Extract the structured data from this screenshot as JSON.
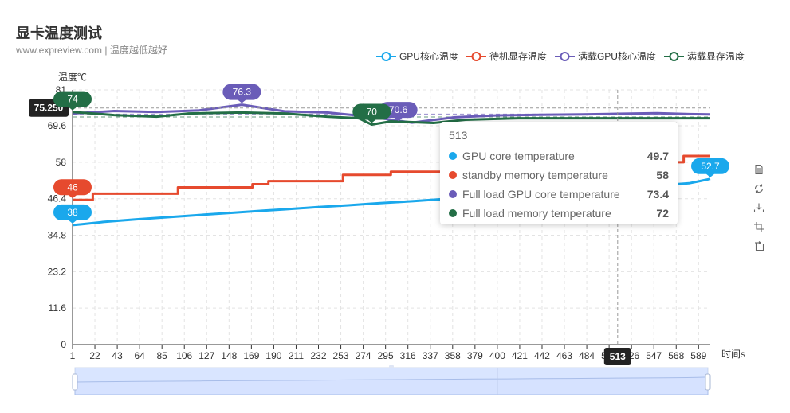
{
  "title": "显卡温度测试",
  "subtitle": "www.expreview.com | 温度越低越好",
  "colors": {
    "gpu": "#1aa8ec",
    "standby": "#e64a2e",
    "loadgpu": "#6a5cb8",
    "loadmem": "#236e46"
  },
  "legend": [
    {
      "name": "GPU核心温度",
      "color": "#1aa8ec"
    },
    {
      "name": "待机显存温度",
      "color": "#e64a2e"
    },
    {
      "name": "满载GPU核心温度",
      "color": "#6a5cb8"
    },
    {
      "name": "满载显存温度",
      "color": "#236e46"
    }
  ],
  "axis_pointer": {
    "y_label": "75.250",
    "x_label": "513"
  },
  "tooltip": {
    "header": "513",
    "rows": [
      {
        "name": "GPU core temperature",
        "value": "49.7",
        "color": "#1aa8ec"
      },
      {
        "name": "standby memory temperature",
        "value": "58",
        "color": "#e64a2e"
      },
      {
        "name": "Full load GPU core temperature",
        "value": "73.4",
        "color": "#6a5cb8"
      },
      {
        "name": "Full load memory temperature",
        "value": "72",
        "color": "#236e46"
      }
    ]
  },
  "toolbox": [
    "data-view-icon",
    "restore-icon",
    "save-image-icon",
    "zoom-icon",
    "zoom-reset-icon"
  ],
  "chart_data": {
    "type": "line",
    "ylabel": "温度℃",
    "xlabel": "时间s",
    "ylim": [
      0,
      81
    ],
    "xlim": [
      1,
      600
    ],
    "y_ticks": [
      0,
      11.6,
      23.2,
      34.8,
      46.4,
      58,
      69.6,
      81
    ],
    "y_tick_labels": [
      "0",
      "11.6",
      "23.2",
      "34.8",
      "46.4",
      "58",
      "69.6",
      "81"
    ],
    "x_ticks": [
      1,
      22,
      43,
      64,
      85,
      106,
      127,
      148,
      169,
      190,
      211,
      232,
      253,
      274,
      295,
      316,
      337,
      358,
      379,
      400,
      421,
      442,
      463,
      484,
      505,
      526,
      547,
      568,
      589
    ],
    "x_tick_labels": [
      "1",
      "22",
      "43",
      "64",
      "85",
      "106",
      "127",
      "148",
      "169",
      "190",
      "211",
      "232",
      "253",
      "274",
      "295",
      "316",
      "337",
      "358",
      "379",
      "400",
      "421",
      "442",
      "463",
      "484",
      "505",
      "526",
      "547",
      "568",
      "589"
    ],
    "grid": true,
    "legend_position": "top-right",
    "series": [
      {
        "name": "GPU核心温度",
        "key": "gpu",
        "x": [
          1,
          10,
          30,
          60,
          90,
          120,
          150,
          180,
          200,
          230,
          260,
          290,
          320,
          350,
          380,
          410,
          440,
          470,
          500,
          513,
          530,
          560,
          580,
          590,
          600
        ],
        "y": [
          38,
          38.3,
          39,
          39.8,
          40.5,
          41.2,
          41.9,
          42.6,
          43,
          43.7,
          44.3,
          45,
          45.6,
          46.3,
          46.9,
          47.5,
          48.1,
          48.7,
          49.4,
          49.7,
          50.1,
          50.8,
          51.3,
          52,
          52.7
        ],
        "markpoints": [
          {
            "label": "38",
            "x": 1,
            "y": 38,
            "type": "min"
          },
          {
            "label": "52.7",
            "x": 600,
            "y": 52.7,
            "type": "max"
          }
        ],
        "marklines": []
      },
      {
        "name": "待机显存温度",
        "key": "standby",
        "x": [
          1,
          20,
          20,
          100,
          100,
          170,
          170,
          185,
          185,
          255,
          255,
          300,
          300,
          440,
          440,
          513,
          513,
          575,
          575,
          600
        ],
        "y": [
          46,
          46,
          48,
          48,
          50,
          50,
          51,
          51,
          52,
          52,
          54,
          54,
          55,
          55,
          56,
          56,
          58,
          58,
          60,
          60
        ],
        "markpoints": [
          {
            "label": "46",
            "x": 1,
            "y": 46,
            "type": "min"
          }
        ],
        "marklines": []
      },
      {
        "name": "满载GPU核心温度",
        "key": "loadgpu",
        "x": [
          1,
          40,
          80,
          120,
          160,
          200,
          240,
          280,
          320,
          360,
          400,
          440,
          480,
          513,
          550,
          580,
          600
        ],
        "y": [
          73.5,
          74.3,
          74,
          74.5,
          76.3,
          74.2,
          73.8,
          72.5,
          70.6,
          72.3,
          72.9,
          73.1,
          73.2,
          73.4,
          73.6,
          73.3,
          73.2
        ],
        "markpoints": [
          {
            "label": "76.3",
            "x": 160,
            "y": 76.3,
            "type": "max"
          },
          {
            "label": "70.6",
            "x": 307,
            "y": 70.6,
            "type": "min"
          }
        ],
        "marklines": [
          {
            "type": "average",
            "y": 73.3
          }
        ]
      },
      {
        "name": "满载显存温度",
        "key": "loadmem",
        "x": [
          1,
          40,
          80,
          110,
          160,
          200,
          240,
          270,
          282,
          300,
          340,
          370,
          420,
          470,
          513,
          550,
          600
        ],
        "y": [
          74,
          73,
          72.5,
          73.5,
          73.8,
          73.5,
          72.5,
          72,
          70,
          71,
          70.5,
          71.5,
          72,
          72,
          72,
          72,
          72
        ],
        "markpoints": [
          {
            "label": "74",
            "x": 1,
            "y": 74,
            "type": "max"
          },
          {
            "label": "70",
            "x": 282,
            "y": 70,
            "type": "min"
          }
        ],
        "marklines": [
          {
            "type": "average",
            "y": 72.4
          }
        ]
      }
    ]
  }
}
